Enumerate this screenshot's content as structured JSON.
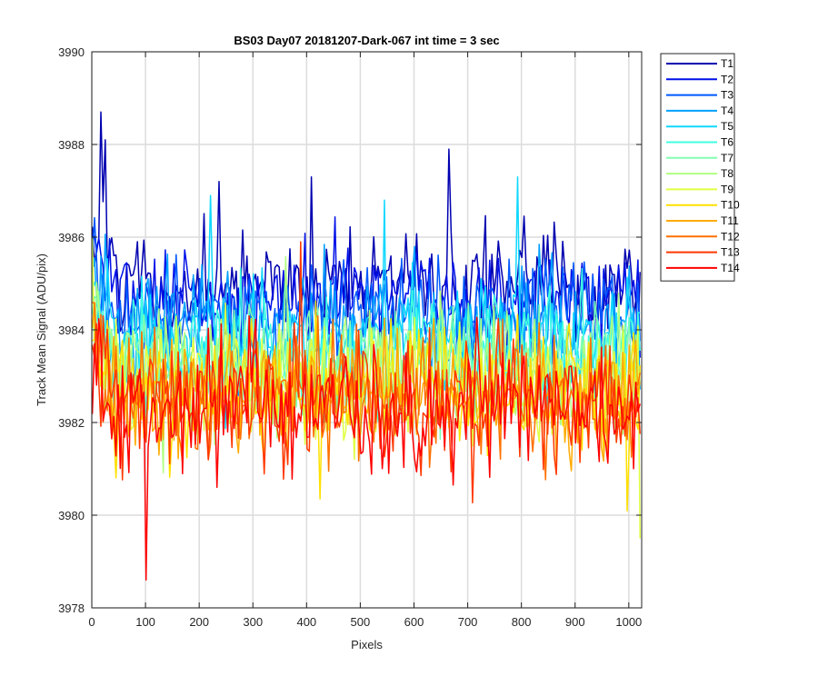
{
  "chart_data": {
    "type": "line",
    "title": "BS03 Day07 20181207-Dark-067 int time = 3 sec",
    "xlabel": "Pixels",
    "ylabel": "Track Mean Signal (ADU/pix)",
    "xlim": [
      0,
      1024
    ],
    "ylim": [
      3978,
      3990
    ],
    "xticks": [
      0,
      100,
      200,
      300,
      400,
      500,
      600,
      700,
      800,
      900,
      1000
    ],
    "yticks": [
      3978,
      3980,
      3982,
      3984,
      3986,
      3988,
      3990
    ],
    "grid": true,
    "legend_position": "outside-top-right",
    "x_sampling": {
      "start": 1,
      "end": 1024,
      "step": 4
    },
    "series": [
      {
        "name": "T1",
        "color": "#0000b0",
        "mean": 3985.0,
        "spread": 0.55,
        "maxima": [
          {
            "x": 16,
            "y": 3988.7
          },
          {
            "x": 25,
            "y": 3988.1
          },
          {
            "x": 665,
            "y": 3987.9
          },
          {
            "x": 236,
            "y": 3987.2
          },
          {
            "x": 408,
            "y": 3987.3
          }
        ]
      },
      {
        "name": "T2",
        "color": "#0010e8",
        "mean": 3984.7,
        "spread": 0.55,
        "maxima": []
      },
      {
        "name": "T3",
        "color": "#0058ff",
        "mean": 3984.4,
        "spread": 0.55,
        "maxima": []
      },
      {
        "name": "T4",
        "color": "#00a0ff",
        "mean": 3984.1,
        "spread": 0.6,
        "maxima": []
      },
      {
        "name": "T5",
        "color": "#10d8ff",
        "mean": 3983.8,
        "spread": 0.6,
        "maxima": [
          {
            "x": 222,
            "y": 3986.9
          },
          {
            "x": 795,
            "y": 3987.3
          },
          {
            "x": 545,
            "y": 3986.8
          }
        ]
      },
      {
        "name": "T6",
        "color": "#40ffe0",
        "mean": 3983.5,
        "spread": 0.6,
        "maxima": []
      },
      {
        "name": "T7",
        "color": "#80ffb0",
        "mean": 3983.3,
        "spread": 0.6,
        "maxima": []
      },
      {
        "name": "T8",
        "color": "#b0ff80",
        "mean": 3983.1,
        "spread": 0.65,
        "maxima": []
      },
      {
        "name": "T9",
        "color": "#e0ff40",
        "mean": 3982.9,
        "spread": 0.65,
        "maxima": [
          {
            "x": 1020,
            "y": 3979.5
          }
        ]
      },
      {
        "name": "T10",
        "color": "#ffe000",
        "mean": 3982.7,
        "spread": 0.65,
        "maxima": []
      },
      {
        "name": "T11",
        "color": "#ffaa00",
        "mean": 3982.6,
        "spread": 0.65,
        "maxima": []
      },
      {
        "name": "T12",
        "color": "#ff7000",
        "mean": 3982.5,
        "spread": 0.65,
        "maxima": []
      },
      {
        "name": "T13",
        "color": "#ff3800",
        "mean": 3982.4,
        "spread": 0.7,
        "maxima": [
          {
            "x": 388,
            "y": 3985.9
          }
        ]
      },
      {
        "name": "T14",
        "color": "#ff0000",
        "mean": 3982.3,
        "spread": 0.7,
        "maxima": [
          {
            "x": 100,
            "y": 3978.6
          }
        ]
      }
    ]
  }
}
